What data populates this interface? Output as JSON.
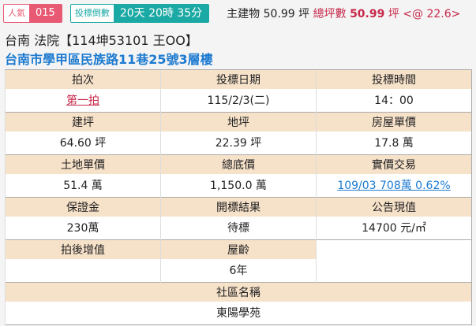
{
  "header": {
    "popularity_label": "人氣",
    "popularity_value": "015",
    "countdown_label": "投標倒數",
    "countdown_value": "20天 20時 35分",
    "main_building_label": "主建物",
    "main_building_value": "50.99 坪",
    "total_area_label": "總坪數",
    "total_area_value": "50.99",
    "total_area_unit": "坪",
    "unit_price": "<@ 22.6>"
  },
  "title": "台南 法院【114坤53101 王OO】",
  "address": "台南市學甲區民族路11巷25號3層樓",
  "table": {
    "r1": {
      "h": [
        "拍次",
        "投標日期",
        "投標時間"
      ],
      "v": [
        "第一拍",
        "115/2/3(二)",
        "14：00"
      ]
    },
    "r2": {
      "h": [
        "建坪",
        "地坪",
        "房屋單價"
      ],
      "v": [
        "64.60 坪",
        "22.39 坪",
        "17.8 萬"
      ]
    },
    "r3": {
      "h": [
        "土地單價",
        "總底價",
        "實價交易"
      ],
      "v": [
        "51.4 萬",
        "1,150.0 萬",
        "109/03 708萬 0.62%"
      ]
    },
    "r4": {
      "h": [
        "保證金",
        "開標結果",
        "公告現值"
      ],
      "v": [
        "230萬",
        "待標",
        "14700 元/㎡"
      ]
    },
    "r5": {
      "h": [
        "拍後增值",
        "屋齡"
      ],
      "v": [
        "",
        "6年"
      ]
    },
    "r6": {
      "h": "社區名稱",
      "v": "東陽學苑"
    }
  },
  "colors": {
    "header_bg": "#f6e1c9",
    "popularity": "#e85a74",
    "countdown": "#1aa9a4",
    "link_blue": "#1c7ad0",
    "accent_red": "#c8284a"
  }
}
